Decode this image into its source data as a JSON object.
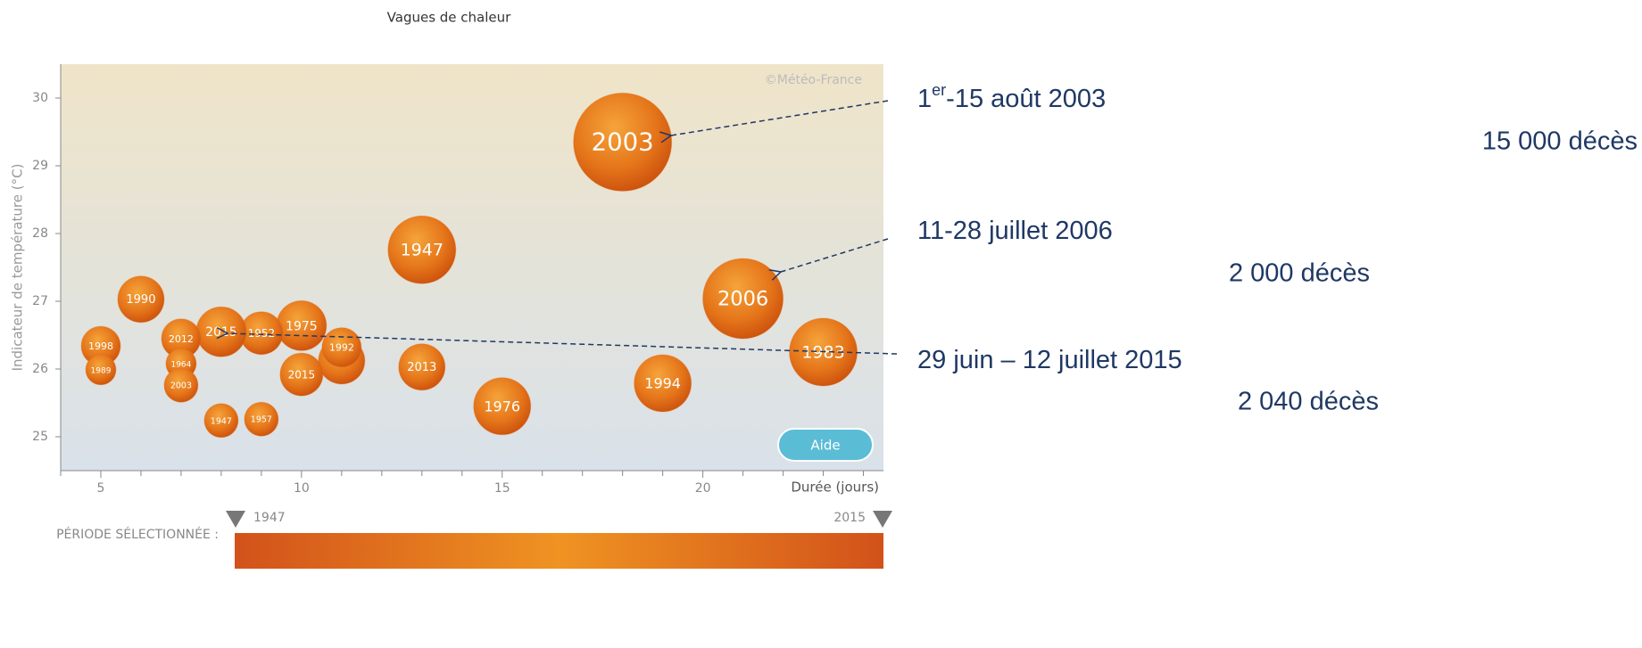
{
  "chart_data": {
    "type": "bubble",
    "title": "Vagues de chaleur",
    "y_label": "Indicateur de température   (°C)",
    "x_label": "Durée (jours)",
    "credit": "©Météo-France",
    "button": "Aide",
    "period_label": "PÉRIODE SÉLECTIONNÉE :",
    "period_start": "1947",
    "period_end": "2015",
    "xlim": [
      4,
      24.5
    ],
    "ylim": [
      24.5,
      30.5
    ],
    "xticks": [
      5,
      10,
      15,
      20
    ],
    "xminor_ticks": [
      4,
      6,
      7,
      8,
      9,
      11,
      12,
      13,
      14,
      16,
      17,
      18,
      19,
      21,
      22,
      23,
      24
    ],
    "yticks": [
      25,
      26,
      27,
      28,
      29,
      30
    ],
    "color": "#e06a10",
    "labels": [
      "2003",
      "1947",
      "2006",
      "1983",
      "1994",
      "1976",
      "1990",
      null,
      "1992",
      "1975",
      "1952",
      "2015",
      "2015",
      "2013",
      "1998",
      "1989",
      "2012",
      "1964",
      "2003",
      "1947",
      "1957"
    ],
    "x": [
      18,
      13,
      21,
      23,
      19,
      15,
      6,
      11,
      11,
      10,
      9,
      8,
      10,
      13,
      5,
      5,
      7,
      7,
      7,
      8,
      9
    ],
    "values": [
      29.35,
      27.76,
      27.04,
      26.25,
      25.79,
      25.45,
      27.03,
      26.12,
      26.32,
      26.64,
      26.53,
      26.55,
      25.92,
      26.03,
      26.34,
      25.99,
      26.45,
      26.08,
      25.76,
      25.24,
      25.26
    ],
    "sizes": [
      55,
      38,
      45,
      38,
      32,
      32,
      26,
      26,
      22,
      28,
      24,
      28,
      24,
      26,
      22,
      17,
      22,
      17,
      19,
      19,
      19
    ],
    "annotations": [
      {
        "text": [
          "1",
          "er",
          "-15 août 2003"
        ],
        "deaths": "15 000 décès"
      },
      {
        "text": [
          "11-28 juillet 2006"
        ],
        "deaths": "2 000 décès"
      },
      {
        "text": [
          "29 juin – 12 juillet 2015"
        ],
        "deaths": "2 040 décès"
      }
    ]
  }
}
